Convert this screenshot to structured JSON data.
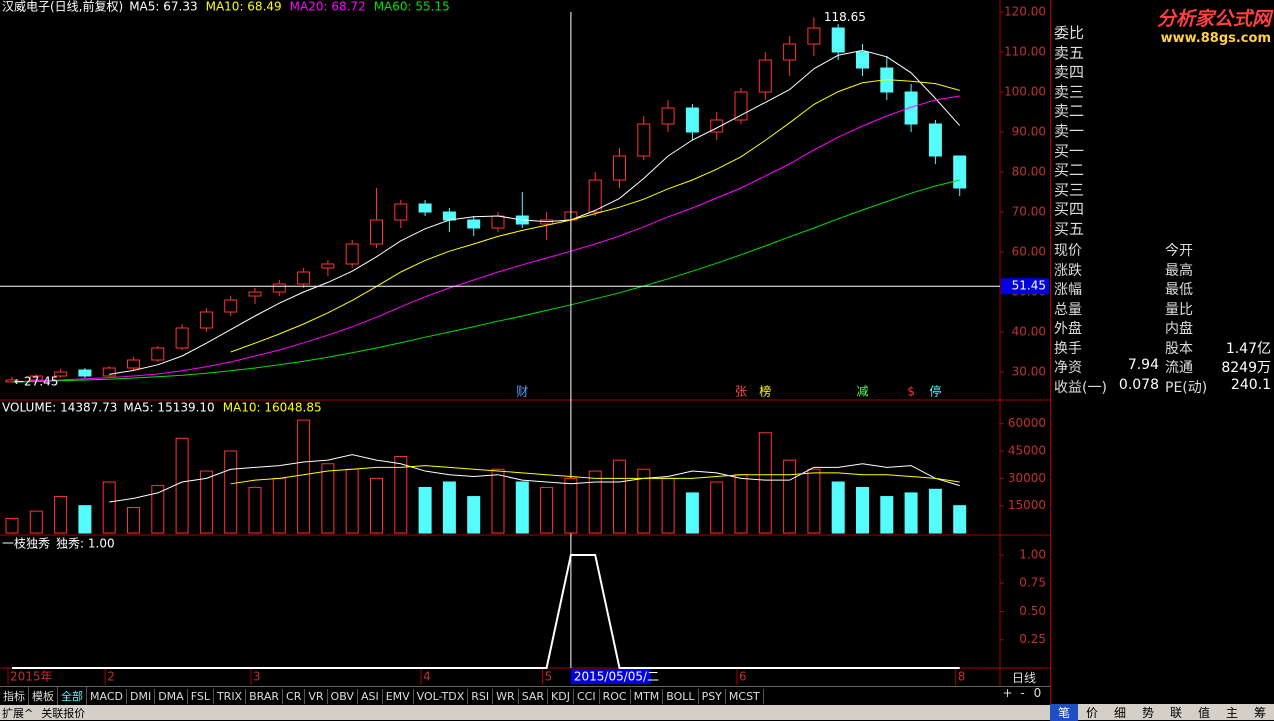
{
  "chart_data": [
    {
      "type": "candlestick",
      "title": "汉威电子(日线,前复权)",
      "open": [
        27.5,
        28,
        29,
        30.5,
        29,
        31,
        33,
        36,
        41,
        45,
        49,
        50,
        52,
        56,
        57,
        62,
        68,
        72,
        70,
        68,
        66,
        69,
        67,
        68,
        70,
        78,
        84,
        92,
        96,
        90,
        93,
        100,
        108,
        112,
        116,
        110,
        106,
        100,
        92,
        84
      ],
      "high": [
        28.8,
        29.5,
        30.8,
        31,
        31.5,
        33.8,
        36.5,
        42,
        46,
        49,
        51,
        53,
        56,
        58,
        63,
        76,
        73,
        73,
        71,
        69,
        70,
        75,
        70,
        71,
        80,
        86,
        94,
        98,
        97,
        95,
        101,
        110,
        114,
        118.65,
        117,
        112,
        109,
        102,
        93,
        84
      ],
      "low": [
        27.45,
        27.8,
        28.6,
        28.5,
        28.8,
        30.5,
        32.5,
        35.5,
        40,
        44,
        47,
        49,
        51,
        54,
        56,
        61,
        66,
        69,
        65,
        64,
        65,
        66,
        63,
        65,
        69,
        76,
        83,
        90,
        88,
        88,
        92,
        98,
        104,
        109,
        108,
        104,
        98,
        90,
        82,
        74
      ],
      "close": [
        28,
        29,
        30,
        29,
        31,
        33,
        36,
        41,
        45,
        48,
        50,
        52,
        55,
        57,
        62,
        68,
        72,
        70,
        68,
        66,
        69,
        67,
        68,
        70,
        78,
        84,
        92,
        96,
        90,
        93,
        100,
        108,
        112,
        116,
        110,
        106,
        100,
        92,
        84,
        76
      ],
      "up_color": "#ff3232",
      "down_color": "#54fcfc",
      "series": [
        {
          "name": "MA5: 67.33",
          "color": "#ffffff",
          "values": [
            null,
            null,
            null,
            null,
            29.4,
            30.4,
            31.8,
            34,
            37.2,
            40.6,
            44,
            47.2,
            50,
            52.4,
            55.2,
            58.8,
            62.8,
            65.8,
            68,
            68.8,
            69,
            68,
            67.6,
            68,
            70.4,
            73.4,
            78.4,
            84,
            88,
            91,
            94.2,
            97.4,
            100.6,
            105.8,
            109.2,
            110.4,
            108.8,
            104.8,
            98.4,
            91.6
          ]
        },
        {
          "name": "MA10: 68.49",
          "color": "#ffff00",
          "values": [
            null,
            null,
            null,
            null,
            null,
            null,
            null,
            null,
            null,
            35,
            37.2,
            39.5,
            42,
            44.8,
            47.9,
            51.4,
            55,
            57.9,
            60.2,
            62,
            63.9,
            65.4,
            66.7,
            68,
            69.6,
            71.2,
            73.2,
            75.8,
            78,
            80.7,
            83.8,
            87.9,
            92.3,
            96.9,
            100.1,
            102.3,
            103.1,
            102.7,
            102.1,
            100.4
          ]
        },
        {
          "name": "MA20: 68.72",
          "color": "#ff00ff",
          "values": [
            27.5,
            27.8,
            28,
            28.3,
            28.6,
            29,
            29.5,
            30.3,
            31.3,
            32.5,
            34,
            35.5,
            37.3,
            39.2,
            41.3,
            43.7,
            46.3,
            48.8,
            51,
            53,
            55,
            56.8,
            58.5,
            60.2,
            62,
            64,
            66.3,
            68.8,
            71,
            73.5,
            76,
            79,
            82,
            85.5,
            88.7,
            91.5,
            94,
            96.2,
            98,
            99
          ]
        },
        {
          "name": "MA60: 55.15",
          "color": "#00e000",
          "values": [
            27.5,
            27.6,
            27.8,
            28,
            28.2,
            28.5,
            28.8,
            29.2,
            29.7,
            30.3,
            31,
            31.8,
            32.7,
            33.7,
            34.8,
            36,
            37.3,
            38.7,
            40,
            41.3,
            42.7,
            44,
            45.4,
            46.8,
            48.3,
            49.8,
            51.5,
            53.3,
            55.2,
            57.2,
            59.3,
            61.5,
            63.8,
            66,
            68.3,
            70.5,
            72.6,
            74.7,
            76.5,
            78
          ]
        }
      ],
      "ylim": [
        23,
        123
      ],
      "yticks": [
        {
          "value": 30,
          "label": "30.00"
        },
        {
          "value": 40,
          "label": "40.00"
        },
        {
          "value": 50,
          "label": "50.00"
        },
        {
          "value": 60,
          "label": "60.00"
        },
        {
          "value": 70,
          "label": "70.00"
        },
        {
          "value": 80,
          "label": "80.00"
        },
        {
          "value": 90,
          "label": "90.00"
        },
        {
          "value": 100,
          "label": "100.00"
        },
        {
          "value": 110,
          "label": "110.00"
        },
        {
          "value": 120,
          "label": "120.00"
        }
      ],
      "annotations": [
        "118.65",
        "←27.45"
      ],
      "events": [
        {
          "text": "财",
          "color": "#5aa0ff"
        },
        {
          "text": "张",
          "color": "#ff5050"
        },
        {
          "text": "榜",
          "color": "#ffff00"
        },
        {
          "text": "减",
          "color": "#50ff50"
        },
        {
          "text": "$",
          "color": "#ff3030"
        },
        {
          "text": "停",
          "color": "#54fcfc"
        }
      ],
      "crosshair": {
        "price": 51.45,
        "date": "2015/05/05/二"
      },
      "x_labels": [
        "2015年",
        "2",
        "3",
        "4",
        "5",
        "6",
        "8"
      ]
    },
    {
      "type": "bar",
      "title": "VOLUME: 14387.73",
      "values": [
        8000,
        12000,
        20000,
        15000,
        28000,
        14000,
        26000,
        52000,
        34000,
        45000,
        25000,
        30000,
        62000,
        38000,
        35000,
        30000,
        42000,
        25000,
        28000,
        20000,
        35000,
        28000,
        25000,
        30000,
        34000,
        40000,
        35000,
        30000,
        22000,
        28000,
        32000,
        55000,
        40000,
        35000,
        28000,
        25000,
        20000,
        22000,
        24000,
        15000
      ],
      "series": [
        {
          "name": "MA5: 15139.10",
          "color": "#ffffff",
          "values": [
            null,
            null,
            null,
            null,
            17000,
            19000,
            22000,
            28000,
            30000,
            35000,
            36000,
            37000,
            39000,
            40000,
            43000,
            40000,
            38000,
            34000,
            32000,
            31000,
            32000,
            29000,
            28000,
            27000,
            28000,
            28000,
            30000,
            31000,
            34000,
            33000,
            30000,
            29000,
            29000,
            36000,
            36000,
            38000,
            36000,
            37000,
            30000,
            26000
          ]
        },
        {
          "name": "MA10: 16048.85",
          "color": "#ffff00",
          "values": [
            null,
            null,
            null,
            null,
            null,
            null,
            null,
            null,
            null,
            27000,
            29000,
            30000,
            32000,
            34000,
            35000,
            36000,
            36000,
            37000,
            36000,
            35000,
            34000,
            33000,
            32000,
            31000,
            30000,
            30000,
            30000,
            30000,
            30000,
            31000,
            32000,
            32000,
            32000,
            33000,
            33000,
            32000,
            32000,
            31000,
            30000,
            28000
          ]
        }
      ],
      "ylim": [
        0,
        73000
      ],
      "yticks": [
        15000,
        30000,
        45000,
        60000
      ]
    },
    {
      "type": "line",
      "title": "一枝独秀",
      "series": [
        {
          "name": "独秀: 1.00",
          "color": "#ffffff",
          "values": [
            0,
            0,
            0,
            0,
            0,
            0,
            0,
            0,
            0,
            0,
            0,
            0,
            0,
            0,
            0,
            0,
            0,
            0,
            0,
            0,
            0,
            0,
            0,
            1,
            1,
            0,
            0,
            0,
            0,
            0,
            0,
            0,
            0,
            0,
            0,
            0,
            0,
            0,
            0,
            0
          ]
        }
      ],
      "ylim": [
        0,
        1.15
      ],
      "yticks": [
        {
          "value": 0.25,
          "label": "0.25"
        },
        {
          "value": 0.5,
          "label": "0.50"
        },
        {
          "value": 0.75,
          "label": "0.75"
        },
        {
          "value": 1,
          "label": "1.00"
        }
      ]
    }
  ],
  "logo": {
    "name": "分析家公式网",
    "url": "www.88gs.com"
  },
  "order_book": [
    "委比",
    "卖五",
    "卖四",
    "卖三",
    "卖二",
    "卖一",
    "买一",
    "买二",
    "买三",
    "买四",
    "买五"
  ],
  "quote": [
    {
      "left": "现价",
      "right": "今开"
    },
    {
      "left": "涨跌",
      "right": "最高"
    },
    {
      "left": "涨幅",
      "right": "最低"
    },
    {
      "left": "总量",
      "right": "量比"
    },
    {
      "left": "外盘",
      "right": "内盘"
    },
    {
      "left": "换手",
      "right": "股本",
      "right_value": "1.47亿"
    },
    {
      "left": "净资",
      "left_value": 7.94,
      "right": "流通",
      "right_value": "8249万"
    },
    {
      "left": "收益(一)",
      "left_value": 0.078,
      "right": "PE(动)",
      "right_value": 240.1
    }
  ],
  "toolbar": [
    "指标",
    "模板",
    "全部",
    "MACD",
    "DMI",
    "DMA",
    "FSL",
    "TRIX",
    "BRAR",
    "CR",
    "VR",
    "OBV",
    "ASI",
    "EMV",
    "VOL-TDX",
    "RSI",
    "WR",
    "SAR",
    "KDJ",
    "CCI",
    "ROC",
    "MTM",
    "BOLL",
    "PSY",
    "MCST"
  ],
  "status": [
    "扩展^",
    "关联报价"
  ],
  "period": "日线",
  "zoom": [
    "+",
    "-",
    "0"
  ],
  "side_tabs": [
    "笔",
    "价",
    "细",
    "势",
    "联",
    "值",
    "主",
    "筹"
  ]
}
